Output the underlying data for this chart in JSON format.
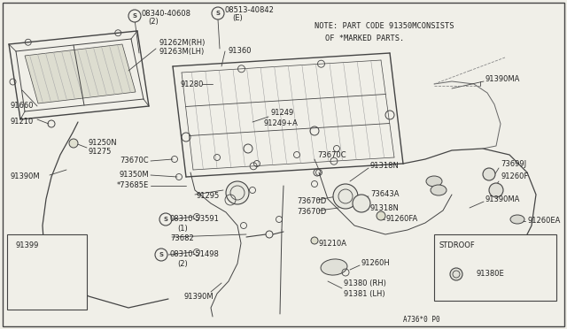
{
  "bg_color": "#f0efe8",
  "line_color": "#444444",
  "text_color": "#222222",
  "note_line1": "NOTE: PART CODE 91350MCONSISTS",
  "note_line2": "OF *MARKED PARTS.",
  "figure_code": "A736*0 P0"
}
